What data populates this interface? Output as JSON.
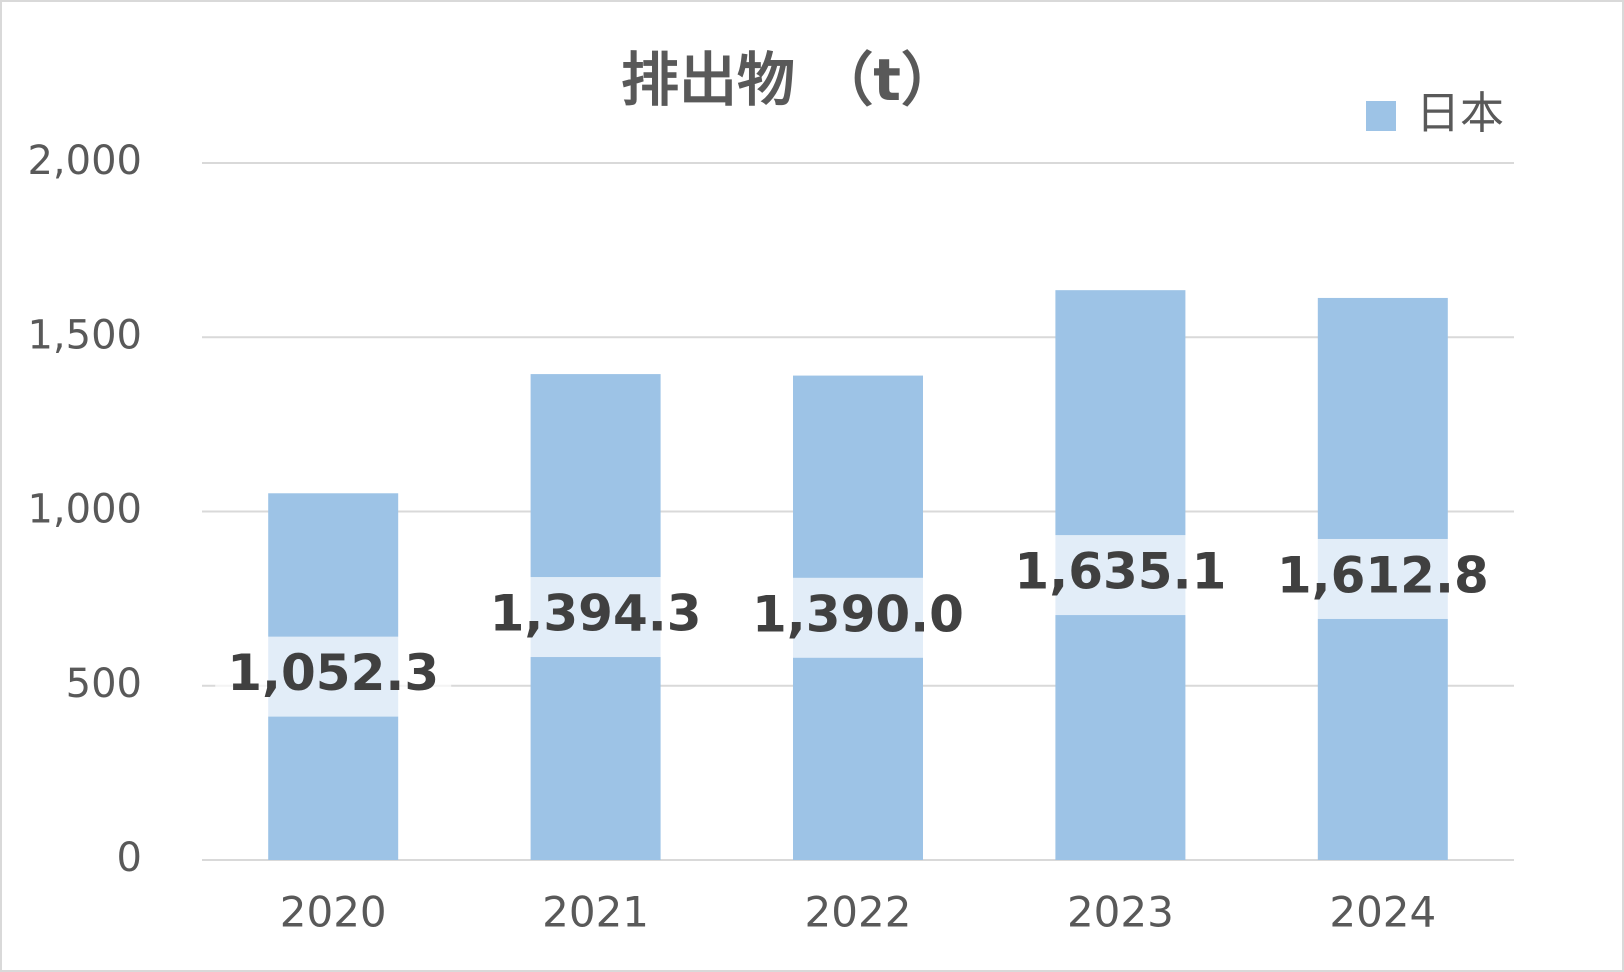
{
  "chart_data": {
    "type": "bar",
    "title": "排出物 （t）",
    "categories": [
      "2020",
      "2021",
      "2022",
      "2023",
      "2024"
    ],
    "series": [
      {
        "name": "日本",
        "color": "#9dc3e6",
        "values": [
          1052.3,
          1394.3,
          1390.0,
          1635.1,
          1612.8
        ],
        "value_labels": [
          "1,052.3",
          "1,394.3",
          "1,390.0",
          "1,635.1",
          "1,612.8"
        ]
      }
    ],
    "ylim": [
      0,
      2000
    ],
    "yticks": [
      0,
      500,
      {
        "value": 1000,
        "label": "1,000"
      },
      {
        "value": 1500,
        "label": "1,500"
      },
      {
        "value": 2000,
        "label": "2,000"
      }
    ],
    "grid": true,
    "legend": "top-right"
  }
}
